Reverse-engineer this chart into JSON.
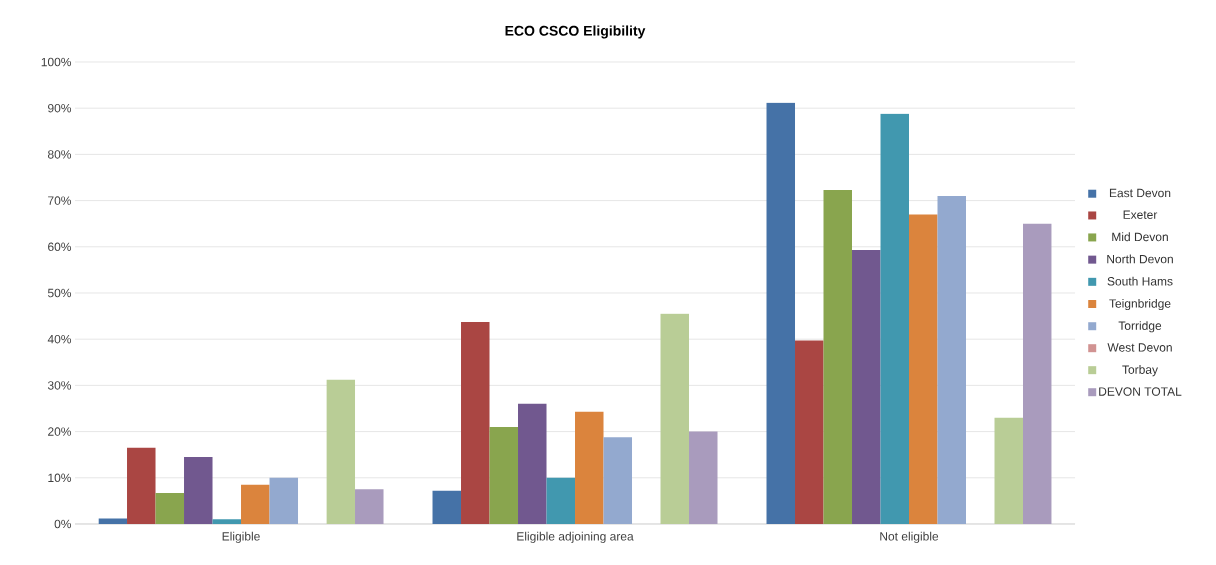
{
  "chart_data": {
    "type": "bar",
    "title": "ECO CSCO Eligibility",
    "categories": [
      "Eligible",
      "Eligible adjoining area",
      "Not eligible"
    ],
    "series": [
      {
        "name": "East Devon",
        "color": "#4572a7",
        "values": [
          1.2,
          7.2,
          91.2
        ]
      },
      {
        "name": "Exeter",
        "color": "#aa4643",
        "values": [
          16.5,
          43.7,
          39.7
        ]
      },
      {
        "name": "Mid Devon",
        "color": "#89a54e",
        "values": [
          6.7,
          21,
          72.3
        ]
      },
      {
        "name": "North Devon",
        "color": "#71588f",
        "values": [
          14.5,
          26,
          59.3
        ]
      },
      {
        "name": "South Hams",
        "color": "#4198af",
        "values": [
          1,
          10,
          88.8
        ]
      },
      {
        "name": "Teignbridge",
        "color": "#db843d",
        "values": [
          8.5,
          24.3,
          67
        ]
      },
      {
        "name": "Torridge",
        "color": "#93a9cf",
        "values": [
          10,
          18.8,
          71
        ]
      },
      {
        "name": "West Devon",
        "color": "#d19392",
        "values": [
          null,
          null,
          null
        ]
      },
      {
        "name": "Torbay",
        "color": "#b9cd96",
        "values": [
          31.2,
          45.5,
          23
        ]
      },
      {
        "name": "DEVON TOTAL",
        "color": "#a99bbd",
        "values": [
          7.5,
          20,
          65
        ]
      }
    ],
    "ylim": [
      0,
      100
    ],
    "yticks": [
      {
        "value": 0,
        "label": "0%"
      },
      {
        "value": 10,
        "label": "10%"
      },
      {
        "value": 20,
        "label": "20%"
      },
      {
        "value": 30,
        "label": "30%"
      },
      {
        "value": 40,
        "label": "40%"
      },
      {
        "value": 50,
        "label": "50%"
      },
      {
        "value": 60,
        "label": "60%"
      },
      {
        "value": 70,
        "label": "70%"
      },
      {
        "value": 80,
        "label": "80%"
      },
      {
        "value": 90,
        "label": "90%"
      },
      {
        "value": 100,
        "label": "100%"
      }
    ],
    "grid": "y",
    "legend": "right"
  }
}
